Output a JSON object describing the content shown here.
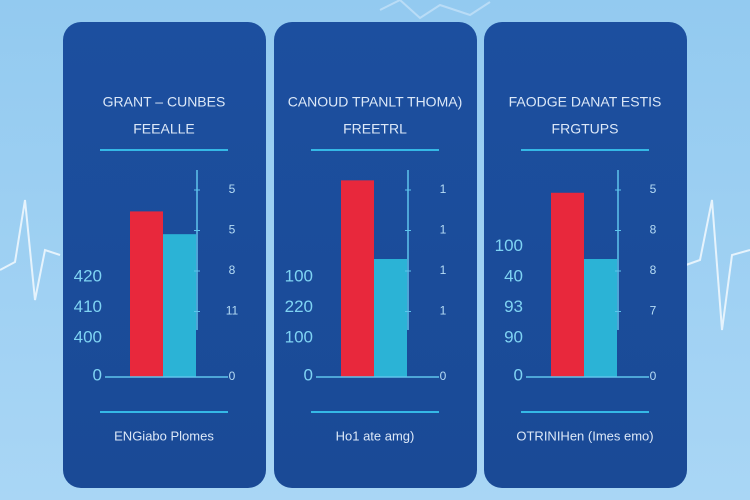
{
  "chart_data": [
    {
      "type": "bar",
      "title": "GRANT – CUNBES",
      "subtitle": "FEEALLE",
      "left_labels": [
        "420",
        "410",
        "400",
        "0"
      ],
      "right_labels": [
        "5",
        "5",
        "8",
        "11",
        "0"
      ],
      "x_label": "ENGiabo Plomes",
      "series": [
        {
          "color": "#e8283c",
          "values": [
            80
          ]
        },
        {
          "color": "#2bb3d6",
          "values": [
            69
          ]
        }
      ],
      "ylim": [
        0,
        100
      ],
      "yticks": []
    },
    {
      "type": "bar",
      "title": "CANOUD TPANLT THOMA)",
      "subtitle": "FREETRL",
      "left_labels": [
        "100",
        "220",
        "100",
        "0"
      ],
      "right_labels": [
        "1",
        "1",
        "1",
        "1",
        "0"
      ],
      "x_label": "Ho1 ate amg)",
      "series": [
        {
          "color": "#e8283c",
          "values": [
            95
          ]
        },
        {
          "color": "#2bb3d6",
          "values": [
            57
          ]
        }
      ],
      "ylim": [
        0,
        100
      ],
      "yticks": []
    },
    {
      "type": "bar",
      "title": "FAODGE DANAT ESTIS",
      "subtitle": "FRGTUPS",
      "left_labels": [
        "100",
        "40",
        "93",
        "90",
        "0"
      ],
      "right_labels": [
        "5",
        "8",
        "8",
        "7",
        "0"
      ],
      "x_label": "OTRINIHen (Imes emo)",
      "series": [
        {
          "color": "#e8283c",
          "values": [
            89
          ]
        },
        {
          "color": "#2bb3d6",
          "values": [
            57
          ]
        }
      ],
      "ylim": [
        0,
        100
      ],
      "yticks": []
    }
  ]
}
